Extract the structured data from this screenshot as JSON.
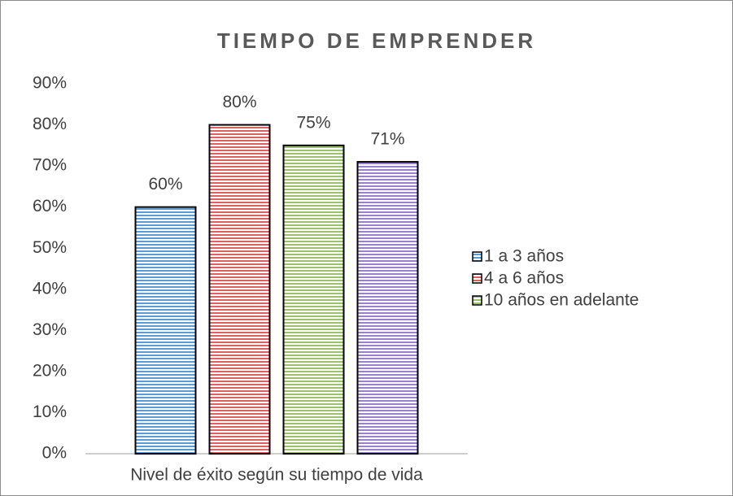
{
  "chart_data": {
    "type": "bar",
    "title": "TIEMPO DE EMPRENDER",
    "categories": [
      "Nivel de éxito según su tiempo de vida"
    ],
    "series": [
      {
        "name": "1 a 3 años",
        "color": "#5b9bd5",
        "values": [
          60
        ],
        "value_labels": [
          "60%"
        ]
      },
      {
        "name": "4 a 6 años",
        "color": "#e06060",
        "values": [
          80
        ],
        "value_labels": [
          "80%"
        ]
      },
      {
        "name": "10 años en adelante",
        "color": "#9bc26a",
        "values": [
          75
        ],
        "value_labels": [
          "75%"
        ]
      },
      {
        "color": "#9a7fd1",
        "values": [
          71
        ],
        "value_labels": [
          "71%"
        ]
      }
    ],
    "ylim": [
      0,
      90
    ],
    "yticks": [
      {
        "value": 0,
        "label": "0%"
      },
      {
        "value": 10,
        "label": "10%"
      },
      {
        "value": 20,
        "label": "20%"
      },
      {
        "value": 30,
        "label": "30%"
      },
      {
        "value": 40,
        "label": "40%"
      },
      {
        "value": 50,
        "label": "50%"
      },
      {
        "value": 60,
        "label": "60%"
      },
      {
        "value": 70,
        "label": "70%"
      },
      {
        "value": 80,
        "label": "80%"
      },
      {
        "value": 90,
        "label": "90%"
      }
    ],
    "grid": false,
    "legend": "right"
  }
}
